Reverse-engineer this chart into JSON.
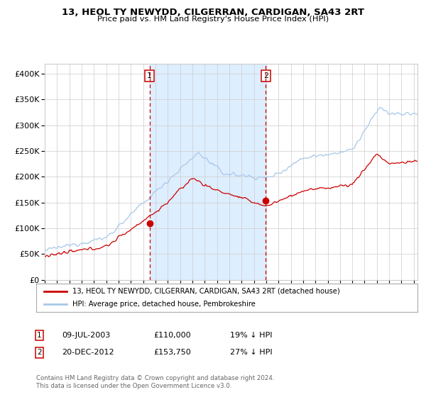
{
  "title": "13, HEOL TY NEWYDD, CILGERRAN, CARDIGAN, SA43 2RT",
  "subtitle": "Price paid vs. HM Land Registry's House Price Index (HPI)",
  "legend_line1": "13, HEOL TY NEWYDD, CILGERRAN, CARDIGAN, SA43 2RT (detached house)",
  "legend_line2": "HPI: Average price, detached house, Pembrokeshire",
  "sale1_date": "09-JUL-2003",
  "sale1_price": 110000,
  "sale1_label": "19% ↓ HPI",
  "sale2_date": "20-DEC-2012",
  "sale2_price": 153750,
  "sale2_label": "27% ↓ HPI",
  "sale1_year": 2003.52,
  "sale2_year": 2012.97,
  "footnote1": "Contains HM Land Registry data © Crown copyright and database right 2024.",
  "footnote2": "This data is licensed under the Open Government Licence v3.0.",
  "hpi_color": "#a8c8e8",
  "price_color": "#cc0000",
  "dot_color": "#cc0000",
  "vline_color": "#cc0000",
  "shade_color": "#ddeeff",
  "background_color": "#ffffff",
  "grid_color": "#cccccc",
  "ylim": [
    0,
    420000
  ],
  "xlim_start": 1995.0,
  "xlim_end": 2025.3
}
